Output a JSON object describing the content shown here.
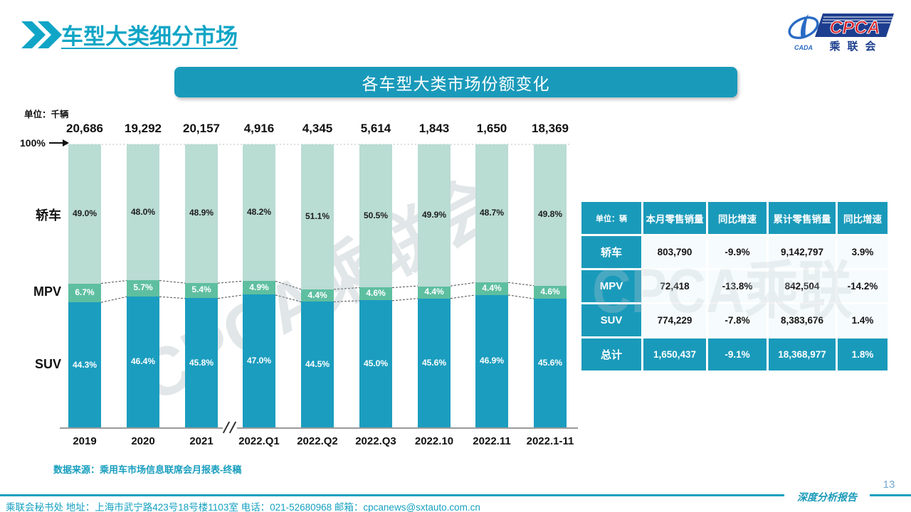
{
  "page": {
    "title": "车型大类细分市场",
    "page_number": "13",
    "report_label": "深度分析报告",
    "footer_contact": "乘联会秘书处  地址：上海市武宁路423号18号楼1103室 电话：021-52680968  邮箱：cpcanews@sxtauto.com.cn",
    "watermark": "CPCA乘联会"
  },
  "logo": {
    "name_latin": "CPCA",
    "name_cn": "乘联会",
    "mark_text": "CADA"
  },
  "chart_data": {
    "type": "bar",
    "stacked": true,
    "title_banner": "各车型大类市场份额变化",
    "unit_label": "单位：千辆",
    "source": "数据来源：乘用车市场信息联席会月报表-终稿",
    "y_axis": {
      "max_label": "100%",
      "ylim": [
        0,
        100
      ],
      "gridline_at_100": true
    },
    "categories": [
      "2019",
      "2020",
      "2021",
      "2022.Q1",
      "2022.Q2",
      "2022.Q3",
      "2022.10",
      "2022.11",
      "2022.1-11"
    ],
    "totals_thousand_units": [
      20686,
      19292,
      20157,
      4916,
      4345,
      5614,
      1843,
      1650,
      18369
    ],
    "series": [
      {
        "name": "轿车",
        "values": [
          49.0,
          48.0,
          48.9,
          48.2,
          51.1,
          50.5,
          49.9,
          48.7,
          49.8
        ],
        "color": "#B9DCD3",
        "label_color": "#1d1d1d"
      },
      {
        "name": "MPV",
        "values": [
          6.7,
          5.7,
          5.4,
          4.9,
          4.4,
          4.6,
          4.4,
          4.4,
          4.6
        ],
        "color": "#5EBFA0",
        "label_color": "#ffffff"
      },
      {
        "name": "SUV",
        "values": [
          44.3,
          46.4,
          45.8,
          47.0,
          44.5,
          45.0,
          45.6,
          46.9,
          45.6
        ],
        "color": "#1B9DBF",
        "label_color": "#ffffff"
      }
    ],
    "series_order_bottom_to_top": [
      "SUV",
      "MPV",
      "轿车"
    ],
    "axis_break_between": [
      "2021",
      "2022.Q1"
    ],
    "legend_position": "left-of-bars"
  },
  "table": {
    "unit_header": "单位：辆",
    "headers": [
      "本月零售销量",
      "同比增速",
      "累计零售销量",
      "同比增速"
    ],
    "rows": [
      {
        "label": "轿车",
        "cells": [
          "803,790",
          "-9.9%",
          "9,142,797",
          "3.9%"
        ],
        "total": false
      },
      {
        "label": "MPV",
        "cells": [
          "72,418",
          "-13.8%",
          "842,504",
          "-14.2%"
        ],
        "total": false
      },
      {
        "label": "SUV",
        "cells": [
          "774,229",
          "-7.8%",
          "8,383,676",
          "1.4%"
        ],
        "total": false
      },
      {
        "label": "总计",
        "cells": [
          "1,650,437",
          "-9.1%",
          "18,368,977",
          "1.8%"
        ],
        "total": true
      }
    ]
  },
  "colors": {
    "teal_primary": "#1A9ABA",
    "teal_bright": "#10A5C6",
    "sedan_segment": "#B9DCD3",
    "mpv_segment": "#5EBFA0",
    "suv_segment": "#1B9DBF",
    "logo_blue": "#1D3E8F",
    "logo_red": "#D8232A"
  }
}
